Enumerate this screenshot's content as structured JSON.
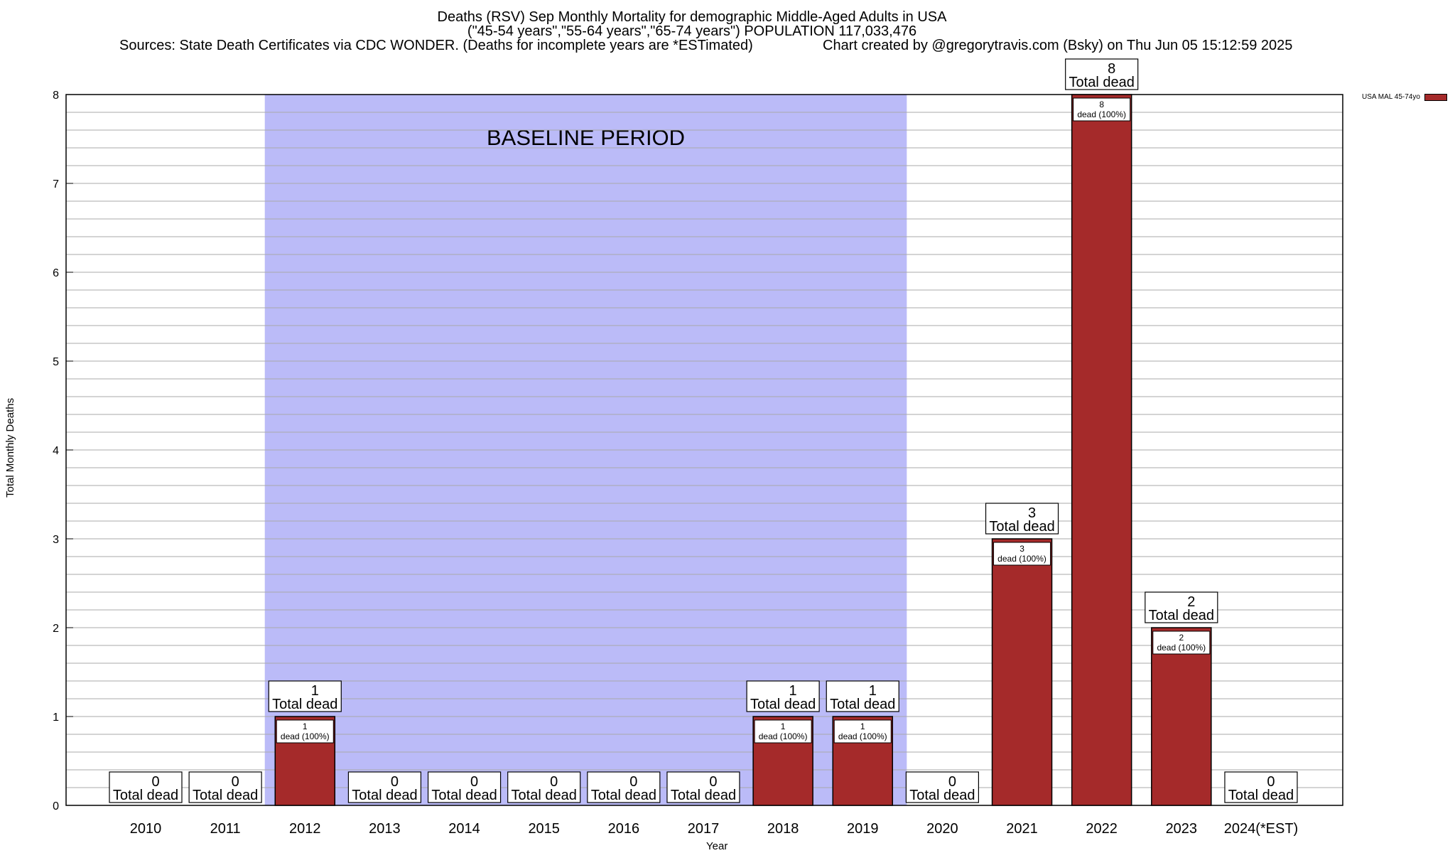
{
  "chart_data": {
    "type": "bar",
    "title": "Deaths (RSV) Sep Monthly Mortality for demographic Middle-Aged Adults in USA",
    "subtitle": "(\"45-54 years\",\"55-64 years\",\"65-74 years\") POPULATION 117,033,476",
    "sources": "Sources: State Death Certificates via CDC WONDER. (Deaths for incomplete years are *ESTimated)",
    "credit": "Chart created by @gregorytravis.com (Bsky) on Thu Jun 05 15:12:59 2025",
    "xlabel": "Year",
    "ylabel": "Total Monthly Deaths",
    "ylim": [
      0,
      8
    ],
    "yticks": [
      0,
      1,
      2,
      3,
      4,
      5,
      6,
      7,
      8
    ],
    "grid": true,
    "legend_position": "top-right",
    "baseline_label": "BASELINE PERIOD",
    "baseline_range": [
      "2012",
      "2019"
    ],
    "total_suffix": "Total dead",
    "categories": [
      "2010",
      "2011",
      "2012",
      "2013",
      "2014",
      "2015",
      "2016",
      "2017",
      "2018",
      "2019",
      "2020",
      "2021",
      "2022",
      "2023",
      "2024(*EST)"
    ],
    "series": [
      {
        "name": "USA MAL 45-74yo",
        "color": "#a52a2a",
        "values": [
          0,
          0,
          1,
          0,
          0,
          0,
          0,
          0,
          1,
          1,
          0,
          3,
          8,
          2,
          0
        ],
        "inner_labels": [
          "",
          "",
          "dead (100%)",
          "",
          "",
          "",
          "",
          "",
          "dead (100%)",
          "dead (100%)",
          "",
          "dead (100%)",
          "dead (100%)",
          "dead (100%)",
          ""
        ]
      }
    ],
    "colors": {
      "bar": "#a52a2a",
      "baseline": "#bbbbf8",
      "grid": "#aaaaaa"
    }
  }
}
